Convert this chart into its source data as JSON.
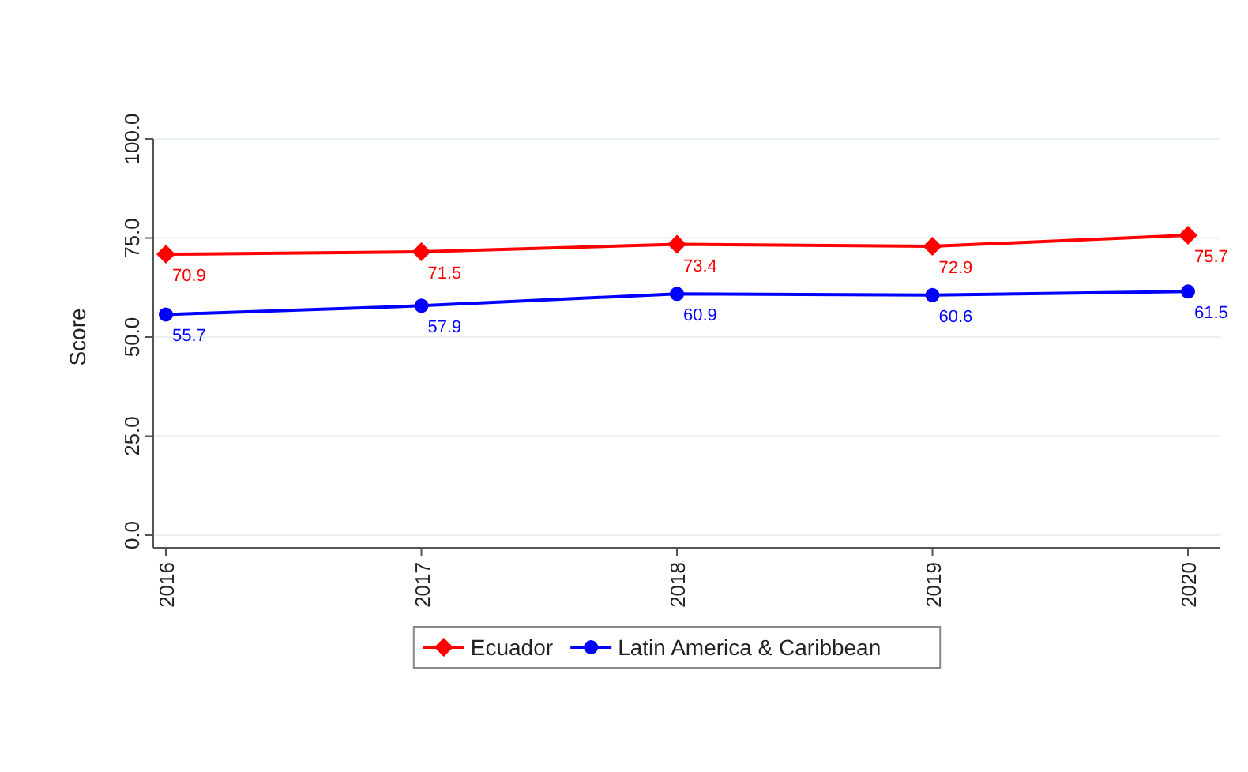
{
  "chart_data": {
    "type": "line",
    "ylabel": "Score",
    "categories": [
      "2016",
      "2017",
      "2018",
      "2019",
      "2020"
    ],
    "series": [
      {
        "name": "Ecuador",
        "color": "#ff0000",
        "marker": "diamond",
        "values": [
          70.9,
          71.5,
          73.4,
          72.9,
          75.7
        ]
      },
      {
        "name": "Latin America & Caribbean",
        "color": "#0000ff",
        "marker": "circle",
        "values": [
          55.7,
          57.9,
          60.9,
          60.6,
          61.5
        ]
      }
    ],
    "ylim": [
      0,
      100
    ],
    "yticks": [
      {
        "value": 0,
        "label": "0.0"
      },
      {
        "value": 25,
        "label": "25.0"
      },
      {
        "value": 50,
        "label": "50.0"
      },
      {
        "value": 75,
        "label": "75.0"
      },
      {
        "value": 100,
        "label": "100.0"
      }
    ],
    "grid": "y",
    "legend": "bottom",
    "data_labels": true
  }
}
